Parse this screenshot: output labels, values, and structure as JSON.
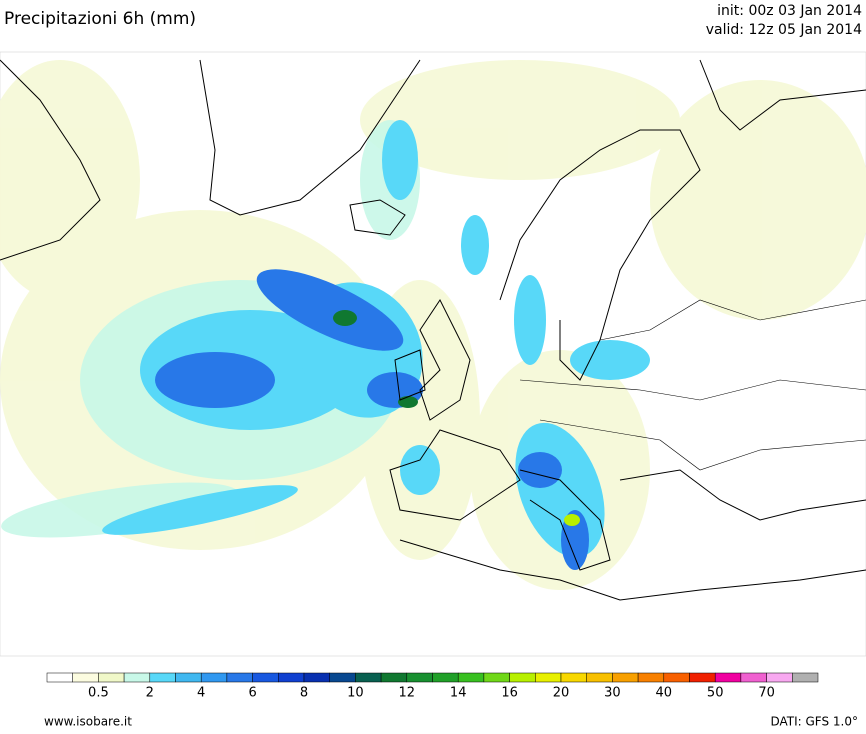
{
  "header": {
    "title": "Precipitazioni 6h (mm)",
    "init": "init: 00z 03 Jan 2014",
    "valid": "valid: 12z 05 Jan 2014"
  },
  "legend": {
    "labels": [
      0.5,
      2,
      4,
      6,
      8,
      10,
      12,
      14,
      16,
      20,
      30,
      40,
      50,
      70
    ],
    "colors": [
      "#ffffff",
      "#fcfce0",
      "#f0f8c8",
      "#c8f8e8",
      "#58d8f8",
      "#40b8f0",
      "#3098f0",
      "#2878e8",
      "#1858e0",
      "#1040d0",
      "#0830b0",
      "#084890",
      "#086050",
      "#107830",
      "#189030",
      "#20a028",
      "#38c020",
      "#70d818",
      "#b8f000",
      "#e8f000",
      "#f8d800",
      "#f8c000",
      "#f8a000",
      "#f88000",
      "#f86000",
      "#f02000",
      "#f000a0",
      "#f060d0",
      "#f8a8f0",
      "#b0b0b0"
    ]
  },
  "footer": {
    "site": "www.isobare.it",
    "source": "DATI: GFS 1.0°"
  }
}
